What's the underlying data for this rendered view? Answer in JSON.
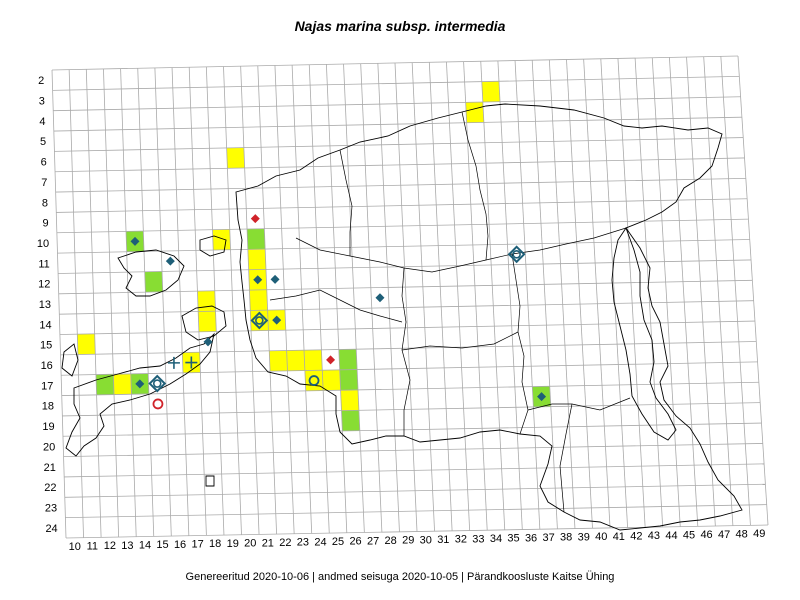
{
  "title": "Najas marina subsp. intermedia",
  "footer": "Genereeritud 2020-10-06  |  andmed seisuga 2020-10-05  |  Pärandkoosluste Kaitse Ühing",
  "grid": {
    "rows": [
      2,
      3,
      4,
      5,
      6,
      7,
      8,
      9,
      10,
      11,
      12,
      13,
      14,
      15,
      16,
      17,
      18,
      19,
      20,
      21,
      22,
      23,
      24
    ],
    "cols": [
      10,
      11,
      12,
      13,
      14,
      15,
      16,
      17,
      18,
      19,
      20,
      21,
      22,
      23,
      24,
      25,
      26,
      27,
      28,
      29,
      30,
      31,
      32,
      33,
      34,
      35,
      36,
      37,
      38,
      39,
      40,
      41,
      42,
      43,
      44,
      45,
      46,
      47,
      48,
      49
    ]
  },
  "colors": {
    "yellow": "#ffff00",
    "green": "#88dd33",
    "teal": "#1e5f78",
    "red": "#d0232a",
    "grid": "#aaaaaa",
    "outline": "#000000"
  },
  "cells": [
    {
      "col": 35,
      "row": 3,
      "fill": "yellow"
    },
    {
      "col": 34,
      "row": 4,
      "fill": "yellow"
    },
    {
      "col": 20,
      "row": 6,
      "fill": "yellow"
    },
    {
      "col": 19,
      "row": 10,
      "fill": "yellow"
    },
    {
      "col": 21,
      "row": 10,
      "fill": "green"
    },
    {
      "col": 14,
      "row": 10,
      "fill": "green"
    },
    {
      "col": 21,
      "row": 11,
      "fill": "yellow"
    },
    {
      "col": 15,
      "row": 12,
      "fill": "green"
    },
    {
      "col": 21,
      "row": 12,
      "fill": "yellow"
    },
    {
      "col": 18,
      "row": 13,
      "fill": "yellow"
    },
    {
      "col": 21,
      "row": 13,
      "fill": "yellow"
    },
    {
      "col": 18,
      "row": 14,
      "fill": "yellow"
    },
    {
      "col": 21,
      "row": 14,
      "fill": "yellow"
    },
    {
      "col": 22,
      "row": 14,
      "fill": "yellow"
    },
    {
      "col": 11,
      "row": 15,
      "fill": "yellow"
    },
    {
      "col": 17,
      "row": 16,
      "fill": "yellow"
    },
    {
      "col": 22,
      "row": 16,
      "fill": "yellow"
    },
    {
      "col": 23,
      "row": 16,
      "fill": "yellow"
    },
    {
      "col": 24,
      "row": 16,
      "fill": "yellow"
    },
    {
      "col": 26,
      "row": 16,
      "fill": "green"
    },
    {
      "col": 12,
      "row": 17,
      "fill": "green"
    },
    {
      "col": 13,
      "row": 17,
      "fill": "yellow"
    },
    {
      "col": 14,
      "row": 17,
      "fill": "green"
    },
    {
      "col": 24,
      "row": 17,
      "fill": "yellow"
    },
    {
      "col": 25,
      "row": 17,
      "fill": "yellow"
    },
    {
      "col": 26,
      "row": 17,
      "fill": "green"
    },
    {
      "col": 26,
      "row": 18,
      "fill": "yellow"
    },
    {
      "col": 37,
      "row": 18,
      "fill": "green"
    },
    {
      "col": 26,
      "row": 19,
      "fill": "green"
    }
  ],
  "markers": [
    {
      "type": "diamond",
      "color": "teal",
      "col": 14,
      "row": 10
    },
    {
      "type": "diamond",
      "color": "red",
      "col": 21,
      "row": 9
    },
    {
      "type": "diamond",
      "color": "teal",
      "col": 16,
      "row": 11
    },
    {
      "type": "diamond",
      "color": "teal",
      "col": 21,
      "row": 12
    },
    {
      "type": "diamond",
      "color": "teal",
      "col": 22,
      "row": 12
    },
    {
      "type": "diamond",
      "color": "teal",
      "col": 28,
      "row": 13
    },
    {
      "type": "diamond",
      "color": "teal",
      "col": 22,
      "row": 14
    },
    {
      "type": "diamond",
      "color": "teal",
      "col": 18,
      "row": 15
    },
    {
      "type": "diamond",
      "color": "teal",
      "col": 14,
      "row": 17
    },
    {
      "type": "diamond",
      "color": "red",
      "col": 25,
      "row": 16
    },
    {
      "type": "diamond",
      "color": "teal",
      "col": 37,
      "row": 18
    },
    {
      "type": "diamond-open",
      "color": "teal",
      "col": 36,
      "row": 11
    },
    {
      "type": "diamond-open",
      "color": "teal",
      "col": 21,
      "row": 14
    },
    {
      "type": "diamond-open",
      "color": "teal",
      "col": 15,
      "row": 17
    },
    {
      "type": "plus",
      "color": "teal",
      "col": 16,
      "row": 16
    },
    {
      "type": "plus",
      "color": "teal",
      "col": 17,
      "row": 16
    },
    {
      "type": "circle",
      "color": "teal",
      "col": 24,
      "row": 17
    },
    {
      "type": "circle",
      "color": "red",
      "col": 15,
      "row": 18
    }
  ]
}
